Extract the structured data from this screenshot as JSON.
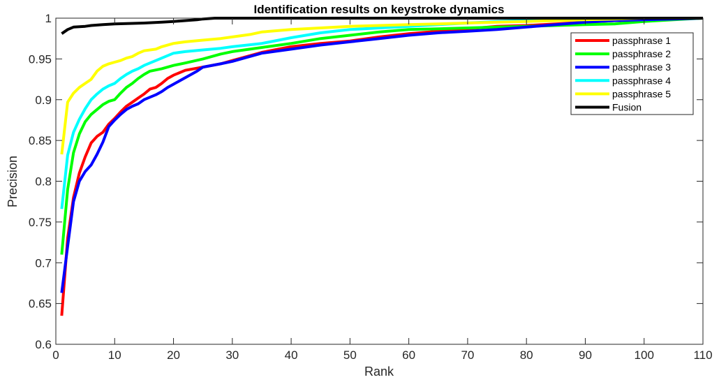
{
  "chart_data": {
    "type": "line",
    "title": "Identification results on keystroke dynamics",
    "xlabel": "Rank",
    "ylabel": "Precision",
    "xlim": [
      0,
      110
    ],
    "ylim": [
      0.6,
      1.0
    ],
    "xticks": [
      0,
      10,
      20,
      30,
      40,
      50,
      60,
      70,
      80,
      90,
      100,
      110
    ],
    "yticks": [
      0.6,
      0.65,
      0.7,
      0.75,
      0.8,
      0.85,
      0.9,
      0.95,
      1.0
    ],
    "ytick_labels": [
      "0.6",
      "0.65",
      "0.7",
      "0.75",
      "0.8",
      "0.85",
      "0.9",
      "0.95",
      "1"
    ],
    "grid": false,
    "legend_position": "top-right",
    "series": [
      {
        "name": "passphrase 1",
        "color": "#ff0000",
        "points": [
          [
            1,
            0.635
          ],
          [
            2,
            0.73
          ],
          [
            3,
            0.78
          ],
          [
            4,
            0.81
          ],
          [
            5,
            0.83
          ],
          [
            6,
            0.847
          ],
          [
            7,
            0.855
          ],
          [
            8,
            0.86
          ],
          [
            9,
            0.87
          ],
          [
            10,
            0.877
          ],
          [
            11,
            0.885
          ],
          [
            12,
            0.892
          ],
          [
            13,
            0.897
          ],
          [
            14,
            0.902
          ],
          [
            15,
            0.907
          ],
          [
            16,
            0.913
          ],
          [
            17,
            0.915
          ],
          [
            18,
            0.92
          ],
          [
            19,
            0.926
          ],
          [
            20,
            0.93
          ],
          [
            22,
            0.936
          ],
          [
            25,
            0.94
          ],
          [
            28,
            0.944
          ],
          [
            30,
            0.948
          ],
          [
            32,
            0.952
          ],
          [
            35,
            0.958
          ],
          [
            40,
            0.965
          ],
          [
            45,
            0.969
          ],
          [
            50,
            0.972
          ],
          [
            55,
            0.977
          ],
          [
            60,
            0.981
          ],
          [
            65,
            0.984
          ],
          [
            70,
            0.987
          ],
          [
            75,
            0.99
          ],
          [
            80,
            0.991
          ],
          [
            85,
            0.993
          ],
          [
            90,
            0.995
          ],
          [
            95,
            0.997
          ],
          [
            100,
            0.998
          ],
          [
            105,
            0.999
          ],
          [
            110,
            1.0
          ]
        ]
      },
      {
        "name": "passphrase 2",
        "color": "#00ff00",
        "points": [
          [
            1,
            0.71
          ],
          [
            2,
            0.79
          ],
          [
            3,
            0.835
          ],
          [
            4,
            0.858
          ],
          [
            5,
            0.873
          ],
          [
            6,
            0.882
          ],
          [
            7,
            0.888
          ],
          [
            8,
            0.894
          ],
          [
            9,
            0.898
          ],
          [
            10,
            0.9
          ],
          [
            11,
            0.908
          ],
          [
            12,
            0.915
          ],
          [
            13,
            0.92
          ],
          [
            14,
            0.926
          ],
          [
            15,
            0.931
          ],
          [
            16,
            0.935
          ],
          [
            18,
            0.938
          ],
          [
            20,
            0.942
          ],
          [
            22,
            0.945
          ],
          [
            25,
            0.95
          ],
          [
            28,
            0.956
          ],
          [
            30,
            0.959
          ],
          [
            35,
            0.964
          ],
          [
            40,
            0.969
          ],
          [
            45,
            0.975
          ],
          [
            50,
            0.979
          ],
          [
            55,
            0.983
          ],
          [
            60,
            0.986
          ],
          [
            65,
            0.987
          ],
          [
            70,
            0.988
          ],
          [
            75,
            0.989
          ],
          [
            80,
            0.99
          ],
          [
            85,
            0.991
          ],
          [
            90,
            0.992
          ],
          [
            95,
            0.993
          ],
          [
            100,
            0.996
          ],
          [
            105,
            0.998
          ],
          [
            110,
            1.0
          ]
        ]
      },
      {
        "name": "passphrase 3",
        "color": "#0000ff",
        "points": [
          [
            1,
            0.663
          ],
          [
            2,
            0.72
          ],
          [
            3,
            0.775
          ],
          [
            4,
            0.8
          ],
          [
            5,
            0.812
          ],
          [
            6,
            0.82
          ],
          [
            7,
            0.833
          ],
          [
            8,
            0.848
          ],
          [
            9,
            0.867
          ],
          [
            10,
            0.875
          ],
          [
            11,
            0.882
          ],
          [
            12,
            0.888
          ],
          [
            13,
            0.892
          ],
          [
            14,
            0.895
          ],
          [
            15,
            0.9
          ],
          [
            16,
            0.903
          ],
          [
            17,
            0.906
          ],
          [
            18,
            0.91
          ],
          [
            19,
            0.915
          ],
          [
            20,
            0.919
          ],
          [
            22,
            0.927
          ],
          [
            24,
            0.935
          ],
          [
            25,
            0.94
          ],
          [
            28,
            0.944
          ],
          [
            30,
            0.947
          ],
          [
            32,
            0.951
          ],
          [
            35,
            0.957
          ],
          [
            40,
            0.962
          ],
          [
            45,
            0.967
          ],
          [
            50,
            0.971
          ],
          [
            55,
            0.975
          ],
          [
            60,
            0.979
          ],
          [
            65,
            0.982
          ],
          [
            70,
            0.984
          ],
          [
            75,
            0.986
          ],
          [
            80,
            0.989
          ],
          [
            85,
            0.992
          ],
          [
            90,
            0.995
          ],
          [
            95,
            0.997
          ],
          [
            100,
            0.998
          ],
          [
            105,
            0.999
          ],
          [
            110,
            1.0
          ]
        ]
      },
      {
        "name": "passphrase 4",
        "color": "#00ffff",
        "points": [
          [
            1,
            0.766
          ],
          [
            2,
            0.832
          ],
          [
            3,
            0.86
          ],
          [
            4,
            0.876
          ],
          [
            5,
            0.889
          ],
          [
            6,
            0.9
          ],
          [
            7,
            0.907
          ],
          [
            8,
            0.913
          ],
          [
            9,
            0.917
          ],
          [
            10,
            0.92
          ],
          [
            11,
            0.926
          ],
          [
            12,
            0.931
          ],
          [
            13,
            0.935
          ],
          [
            14,
            0.938
          ],
          [
            15,
            0.942
          ],
          [
            16,
            0.945
          ],
          [
            17,
            0.948
          ],
          [
            18,
            0.951
          ],
          [
            19,
            0.954
          ],
          [
            20,
            0.957
          ],
          [
            22,
            0.959
          ],
          [
            25,
            0.961
          ],
          [
            28,
            0.963
          ],
          [
            30,
            0.965
          ],
          [
            35,
            0.969
          ],
          [
            40,
            0.976
          ],
          [
            45,
            0.982
          ],
          [
            50,
            0.986
          ],
          [
            55,
            0.988
          ],
          [
            60,
            0.99
          ],
          [
            65,
            0.992
          ],
          [
            70,
            0.994
          ],
          [
            75,
            0.996
          ],
          [
            80,
            0.997
          ],
          [
            85,
            0.998
          ],
          [
            90,
            0.999
          ],
          [
            95,
            1.0
          ],
          [
            110,
            1.0
          ]
        ]
      },
      {
        "name": "passphrase 5",
        "color": "#ffff00",
        "points": [
          [
            1,
            0.833
          ],
          [
            2,
            0.897
          ],
          [
            3,
            0.908
          ],
          [
            4,
            0.915
          ],
          [
            5,
            0.92
          ],
          [
            6,
            0.925
          ],
          [
            7,
            0.935
          ],
          [
            8,
            0.941
          ],
          [
            9,
            0.944
          ],
          [
            10,
            0.946
          ],
          [
            11,
            0.948
          ],
          [
            12,
            0.951
          ],
          [
            13,
            0.953
          ],
          [
            14,
            0.957
          ],
          [
            15,
            0.96
          ],
          [
            17,
            0.962
          ],
          [
            18,
            0.965
          ],
          [
            20,
            0.969
          ],
          [
            22,
            0.971
          ],
          [
            25,
            0.973
          ],
          [
            28,
            0.975
          ],
          [
            30,
            0.977
          ],
          [
            33,
            0.98
          ],
          [
            35,
            0.983
          ],
          [
            40,
            0.986
          ],
          [
            45,
            0.988
          ],
          [
            50,
            0.99
          ],
          [
            55,
            0.991
          ],
          [
            60,
            0.992
          ],
          [
            65,
            0.993
          ],
          [
            70,
            0.994
          ],
          [
            75,
            0.995
          ],
          [
            80,
            0.996
          ],
          [
            85,
            0.997
          ],
          [
            90,
            0.998
          ],
          [
            95,
            0.999
          ],
          [
            100,
            1.0
          ],
          [
            110,
            1.0
          ]
        ]
      },
      {
        "name": "Fusion",
        "color": "#000000",
        "points": [
          [
            1,
            0.981
          ],
          [
            2,
            0.986
          ],
          [
            3,
            0.989
          ],
          [
            5,
            0.99
          ],
          [
            6,
            0.991
          ],
          [
            8,
            0.992
          ],
          [
            10,
            0.993
          ],
          [
            15,
            0.994
          ],
          [
            18,
            0.995
          ],
          [
            20,
            0.996
          ],
          [
            22,
            0.997
          ],
          [
            24,
            0.998
          ],
          [
            25,
            0.999
          ],
          [
            27,
            1.0
          ],
          [
            110,
            1.0
          ]
        ]
      }
    ]
  }
}
